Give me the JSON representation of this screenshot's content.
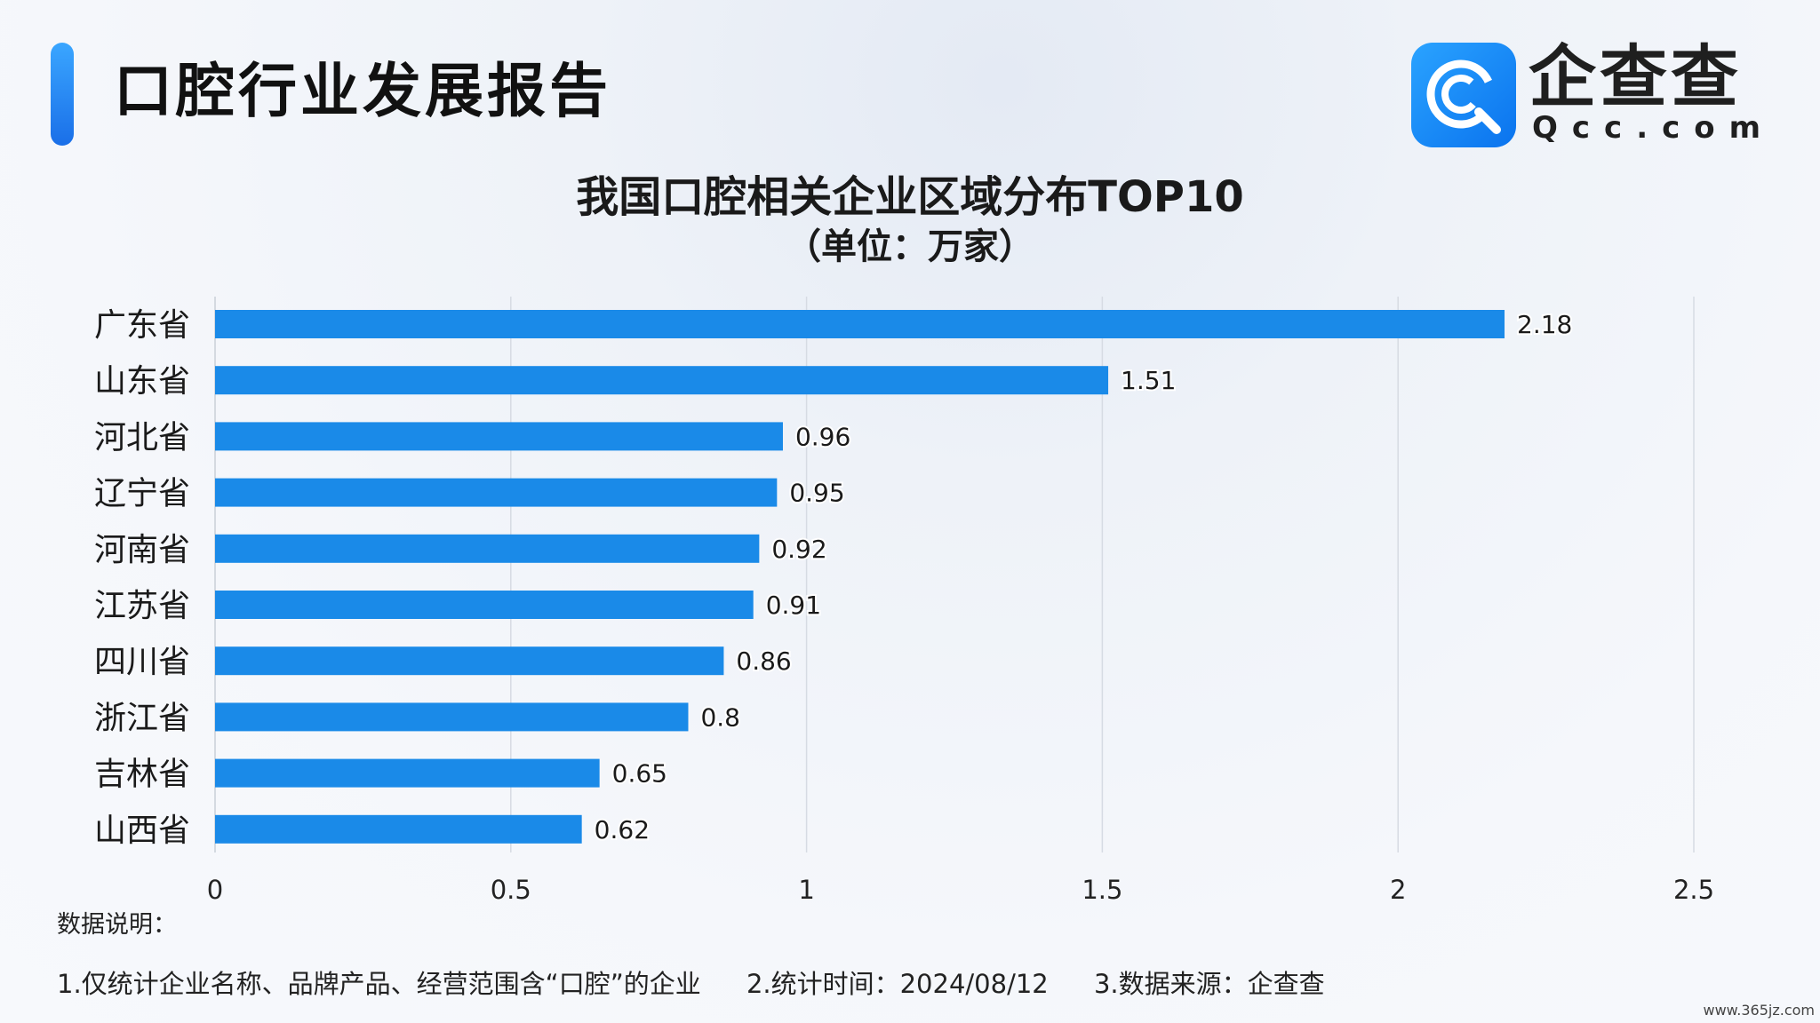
{
  "header": {
    "title": "口腔行业发展报告",
    "logo": {
      "cn": "企查查",
      "en": "Qcc.com",
      "icon": "qcc-logo-icon"
    }
  },
  "chart_data": {
    "type": "bar",
    "orientation": "horizontal",
    "title": "我国口腔相关企业区域分布TOP10",
    "subtitle": "（单位：万家）",
    "categories": [
      "广东省",
      "山东省",
      "河北省",
      "辽宁省",
      "河南省",
      "江苏省",
      "四川省",
      "浙江省",
      "吉林省",
      "山西省"
    ],
    "values": [
      2.18,
      1.51,
      0.96,
      0.95,
      0.92,
      0.91,
      0.86,
      0.8,
      0.65,
      0.62
    ],
    "data_labels": [
      "2.18",
      "1.51",
      "0.96",
      "0.95",
      "0.92",
      "0.91",
      "0.86",
      "0.8",
      "0.65",
      "0.62"
    ],
    "xlim": [
      0,
      2.5
    ],
    "xticks": [
      0,
      0.5,
      1,
      1.5,
      2,
      2.5
    ],
    "xtick_labels": [
      "0",
      "0.5",
      "1",
      "1.5",
      "2",
      "2.5"
    ],
    "grid": true,
    "bar_color": "#1a8ae8"
  },
  "notes": {
    "title": "数据说明：",
    "items": [
      "1.仅统计企业名称、品牌产品、经营范围含“口腔”的企业",
      "2.统计时间：2024/08/12",
      "3.数据来源：企查查"
    ]
  },
  "watermark": "www.365jz.com"
}
